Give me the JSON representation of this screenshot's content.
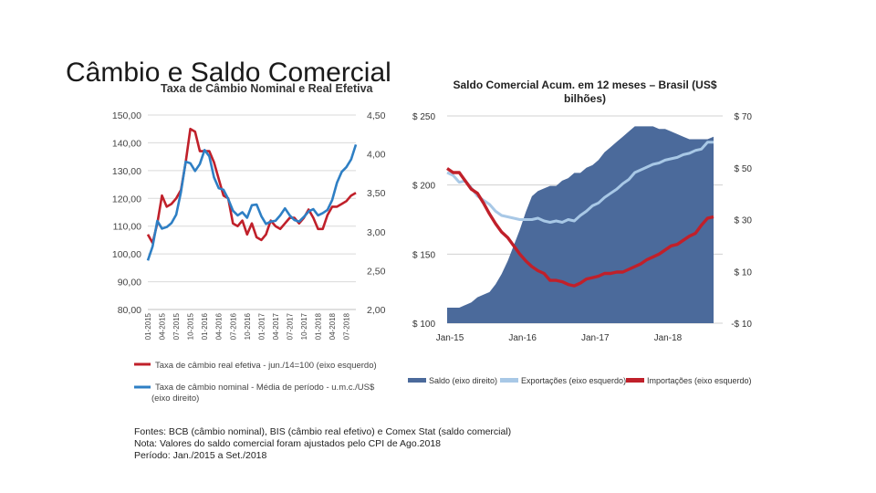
{
  "slide": {
    "title": "Câmbio e Saldo Comercial"
  },
  "charts": {
    "left": {
      "title": "Taxa de Câmbio Nominal e Real Efetiva",
      "legend": [
        "Taxa de câmbio real efetiva - jun./14=100 (eixo esquerdo)",
        "Taxa de câmbio nominal - Média de período - u.m.c./US$",
        "(eixo direito)"
      ]
    },
    "right": {
      "title_line1": "Saldo Comercial Acum. em 12 meses – Brasil (US$",
      "title_line2": "bilhões)",
      "legend": [
        "Saldo (eixo direito)",
        "Exportações (eixo esquerdo)",
        "Importações (eixo esquerdo)"
      ]
    }
  },
  "footer": {
    "line1": "Fontes: BCB (câmbio nominal), BIS (câmbio real efetivo) e Comex Stat (saldo comercial)",
    "line2": "Nota: Valores do saldo comercial foram ajustados pelo CPI de Ago.2018",
    "line3": "Período: Jan./2015 a Set./2018"
  },
  "chart_data": [
    {
      "type": "line",
      "title": "Taxa de Câmbio Nominal e Real Efetiva",
      "x": [
        "01-2015",
        "02-2015",
        "03-2015",
        "04-2015",
        "05-2015",
        "06-2015",
        "07-2015",
        "08-2015",
        "09-2015",
        "10-2015",
        "11-2015",
        "12-2015",
        "01-2016",
        "02-2016",
        "03-2016",
        "04-2016",
        "05-2016",
        "06-2016",
        "07-2016",
        "08-2016",
        "09-2016",
        "10-2016",
        "11-2016",
        "12-2016",
        "01-2017",
        "02-2017",
        "03-2017",
        "04-2017",
        "05-2017",
        "06-2017",
        "07-2017",
        "08-2017",
        "09-2017",
        "10-2017",
        "11-2017",
        "12-2017",
        "01-2018",
        "02-2018",
        "03-2018",
        "04-2018",
        "05-2018",
        "06-2018",
        "07-2018",
        "08-2018",
        "09-2018"
      ],
      "x_ticks": [
        "01-2015",
        "04-2015",
        "07-2015",
        "10-2015",
        "01-2016",
        "04-2016",
        "07-2016",
        "10-2016",
        "01-2017",
        "04-2017",
        "07-2017",
        "10-2017",
        "01-2018",
        "04-2018",
        "07-2018"
      ],
      "y_left_ticks": [
        "80,00",
        "90,00",
        "100,00",
        "110,00",
        "120,00",
        "130,00",
        "140,00",
        "150,00"
      ],
      "y_right_ticks": [
        "2,00",
        "2,50",
        "3,00",
        "3,50",
        "4,00",
        "4,50"
      ],
      "ylim_left": [
        80,
        150
      ],
      "ylim_right": [
        2.0,
        4.5
      ],
      "grid": true,
      "series": [
        {
          "name": "Taxa de câmbio real efetiva - jun./14=100 (eixo esquerdo)",
          "axis": "left",
          "color": "#c0202a",
          "values": [
            107,
            104,
            111,
            121,
            117,
            118,
            120,
            123,
            133,
            145,
            144,
            137,
            137,
            137,
            133,
            127,
            121,
            120,
            111,
            110,
            112,
            107,
            111,
            106,
            105,
            107,
            112,
            110,
            109,
            111,
            113,
            113,
            111,
            113,
            116,
            113,
            109,
            109,
            114,
            117,
            117,
            118,
            119,
            121,
            122
          ]
        },
        {
          "name": "Taxa de câmbio nominal - Média de período - u.m.c./US$ (eixo direito)",
          "axis": "right",
          "color": "#2e7fc4",
          "values": [
            2.63,
            2.81,
            3.14,
            3.04,
            3.06,
            3.11,
            3.22,
            3.51,
            3.9,
            3.88,
            3.78,
            3.87,
            4.05,
            3.97,
            3.7,
            3.56,
            3.54,
            3.42,
            3.27,
            3.21,
            3.25,
            3.18,
            3.34,
            3.35,
            3.2,
            3.1,
            3.13,
            3.14,
            3.21,
            3.3,
            3.21,
            3.15,
            3.13,
            3.19,
            3.26,
            3.29,
            3.21,
            3.24,
            3.28,
            3.41,
            3.63,
            3.77,
            3.83,
            3.93,
            4.12
          ]
        }
      ]
    },
    {
      "type": "area",
      "title": "Saldo Comercial Acum. em 12 meses – Brasil (US$ bilhões)",
      "x": [
        "01-2015",
        "02-2015",
        "03-2015",
        "04-2015",
        "05-2015",
        "06-2015",
        "07-2015",
        "08-2015",
        "09-2015",
        "10-2015",
        "11-2015",
        "12-2015",
        "01-2016",
        "02-2016",
        "03-2016",
        "04-2016",
        "05-2016",
        "06-2016",
        "07-2016",
        "08-2016",
        "09-2016",
        "10-2016",
        "11-2016",
        "12-2016",
        "01-2017",
        "02-2017",
        "03-2017",
        "04-2017",
        "05-2017",
        "06-2017",
        "07-2017",
        "08-2017",
        "09-2017",
        "10-2017",
        "11-2017",
        "12-2017",
        "01-2018",
        "02-2018",
        "03-2018",
        "04-2018",
        "05-2018",
        "06-2018",
        "07-2018",
        "08-2018",
        "09-2018"
      ],
      "x_ticks": [
        "Jan-15",
        "Jan-16",
        "Jan-17",
        "Jan-18"
      ],
      "y_left_ticks": [
        "$ 100",
        "$ 150",
        "$ 200",
        "$ 250"
      ],
      "y_right_ticks": [
        "-$ 10",
        "$ 10",
        "$ 30",
        "$ 50",
        "$ 70"
      ],
      "ylim_left": [
        100,
        250
      ],
      "ylim_right": [
        -10,
        70
      ],
      "grid": true,
      "legend_position": "bottom",
      "series": [
        {
          "name": "Saldo (eixo direito)",
          "axis": "right",
          "type": "area",
          "color": "#4b6a9b",
          "values": [
            -4,
            -4,
            -4,
            -3,
            -2,
            0,
            1,
            2,
            5,
            9,
            14,
            20,
            26,
            33,
            39,
            41,
            42,
            43,
            43,
            45,
            46,
            48,
            48,
            50,
            51,
            53,
            56,
            58,
            60,
            62,
            64,
            66,
            66,
            66,
            66,
            65,
            65,
            64,
            63,
            62,
            61,
            61,
            61,
            61,
            62
          ]
        },
        {
          "name": "Exportações (eixo esquerdo)",
          "axis": "left",
          "type": "line",
          "color": "#a8c8e6",
          "values": [
            209,
            207,
            202,
            203,
            198,
            192,
            189,
            186,
            181,
            178,
            177,
            176,
            175,
            175,
            175,
            176,
            174,
            173,
            174,
            173,
            175,
            174,
            178,
            181,
            185,
            187,
            191,
            194,
            197,
            201,
            204,
            209,
            211,
            213,
            215,
            216,
            218,
            219,
            220,
            222,
            223,
            225,
            226,
            231,
            231
          ]
        },
        {
          "name": "Importações (eixo esquerdo)",
          "axis": "left",
          "type": "line",
          "color": "#c0202a",
          "values": [
            212,
            209,
            209,
            203,
            197,
            194,
            187,
            179,
            172,
            166,
            162,
            156,
            150,
            145,
            141,
            138,
            136,
            131,
            131,
            130,
            128,
            127,
            129,
            132,
            133,
            134,
            136,
            136,
            137,
            137,
            139,
            141,
            143,
            146,
            148,
            150,
            153,
            156,
            157,
            160,
            163,
            165,
            171,
            176,
            177
          ]
        }
      ]
    }
  ]
}
